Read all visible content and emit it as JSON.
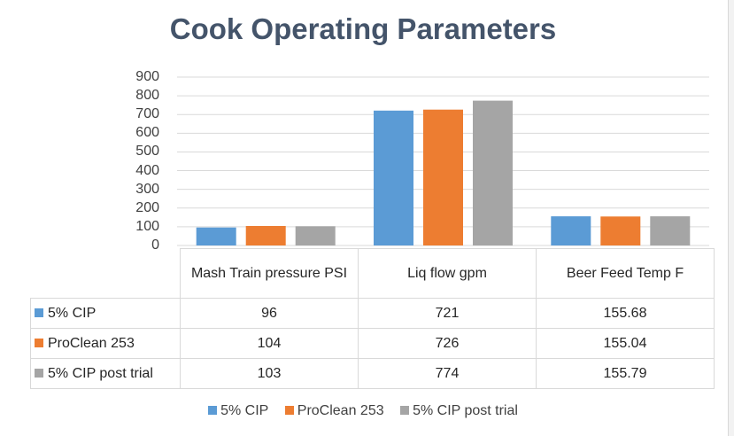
{
  "chart_data": {
    "type": "bar",
    "title": "Cook Operating Parameters",
    "categories": [
      "Mash Train pressure PSI",
      "Liq flow gpm",
      "Beer Feed Temp F"
    ],
    "series": [
      {
        "name": "5% CIP",
        "color": "#5b9bd5",
        "values": [
          96,
          721,
          155.68
        ],
        "labels": [
          "96",
          "721",
          "155.68"
        ]
      },
      {
        "name": "ProClean 253",
        "color": "#ed7d31",
        "values": [
          104,
          726,
          155.04
        ],
        "labels": [
          "104",
          "726",
          "155.04"
        ]
      },
      {
        "name": "5% CIP post trial",
        "color": "#a5a5a5",
        "values": [
          103,
          774,
          155.79
        ],
        "labels": [
          "103",
          "774",
          "155.79"
        ]
      }
    ],
    "ylim": [
      0,
      900
    ],
    "yticks": [
      "0",
      "100",
      "200",
      "300",
      "400",
      "500",
      "600",
      "700",
      "800",
      "900"
    ],
    "grid": true,
    "data_table": true,
    "legend_position": "bottom"
  }
}
